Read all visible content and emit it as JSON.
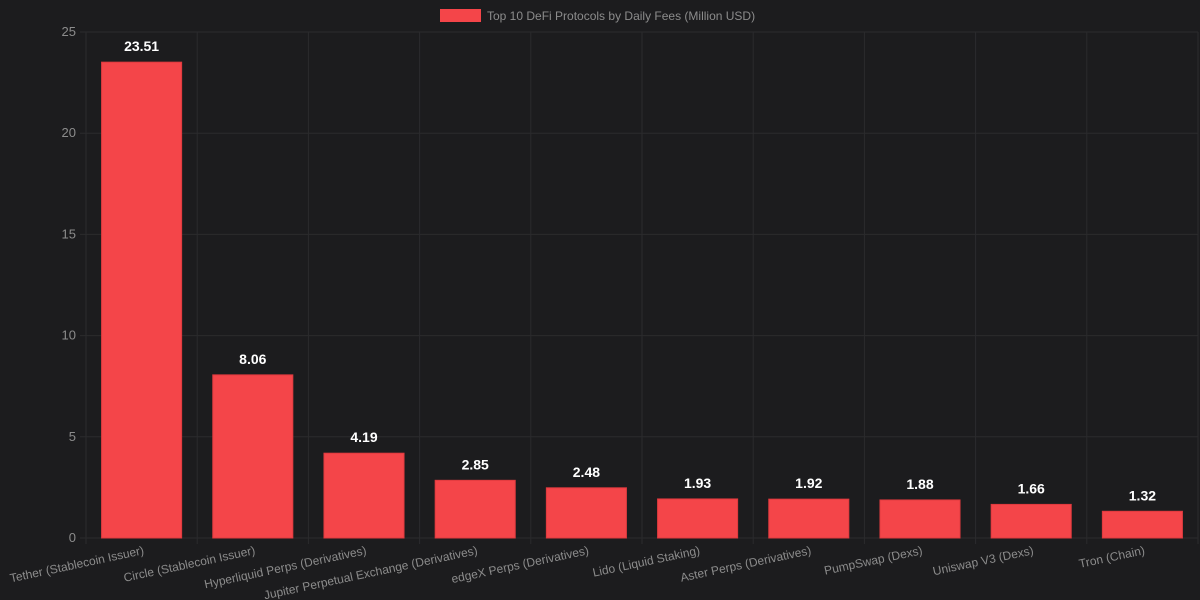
{
  "chart_data": {
    "type": "bar",
    "categories": [
      "Tether (Stablecoin Issuer)",
      "Circle (Stablecoin Issuer)",
      "Hyperliquid Perps (Derivatives)",
      "Jupiter Perpetual Exchange (Derivatives)",
      "edgeX Perps (Derivatives)",
      "Lido (Liquid Staking)",
      "Aster Perps (Derivatives)",
      "PumpSwap (Dexs)",
      "Uniswap V3 (Dexs)",
      "Tron (Chain)"
    ],
    "series": [
      {
        "name": "Top 10 DeFi Protocols by Daily Fees (Million USD)",
        "values": [
          23.51,
          8.06,
          4.19,
          2.85,
          2.48,
          1.93,
          1.92,
          1.88,
          1.66,
          1.32
        ],
        "color": "#f44549"
      }
    ],
    "data_labels": [
      "23.51",
      "8.06",
      "4.19",
      "2.85",
      "2.48",
      "1.93",
      "1.92",
      "1.88",
      "1.66",
      "1.32"
    ],
    "yticks": [
      0,
      5,
      10,
      15,
      20,
      25
    ],
    "ylim": [
      0,
      25
    ],
    "grid": true,
    "legend_position": "top-center",
    "colors": {
      "background": "#1c1c1e",
      "grid": "#2b2b2d",
      "bar": "#f44549",
      "bar_border": "#e03a3e"
    }
  }
}
